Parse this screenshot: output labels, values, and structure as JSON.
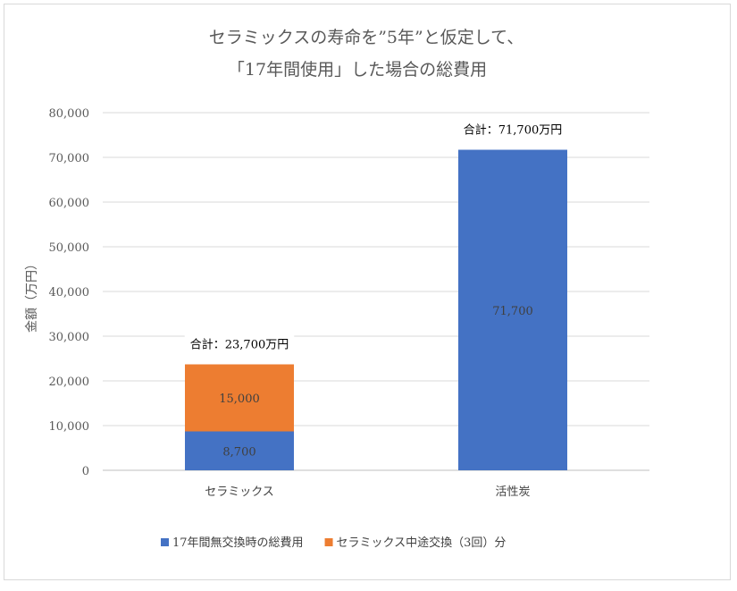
{
  "chart_data": {
    "type": "bar",
    "stacked": true,
    "title_lines": [
      "セラミックスの寿命を”5年”と仮定して、",
      "「17年間使用」した場合の総費用"
    ],
    "xlabel": "",
    "ylabel": "金額（万円）",
    "ylim": [
      0,
      80000
    ],
    "yticks": [
      0,
      10000,
      20000,
      30000,
      40000,
      50000,
      60000,
      70000,
      80000
    ],
    "ytick_labels": [
      "0",
      "10,000",
      "20,000",
      "30,000",
      "40,000",
      "50,000",
      "60,000",
      "70,000",
      "80,000"
    ],
    "grid": true,
    "legend_position": "bottom",
    "categories": [
      "セラミックス",
      "活性炭"
    ],
    "series": [
      {
        "name": "17年間無交換時の総費用",
        "values": [
          8700,
          71700
        ],
        "labels": [
          "8,700",
          "71,700"
        ],
        "color": "#4472c4"
      },
      {
        "name": "セラミックス中途交換（3回）分",
        "values": [
          15000,
          0
        ],
        "labels": [
          "15,000",
          ""
        ],
        "color": "#ed7d31"
      }
    ],
    "totals": [
      "合計：23,700万円",
      "合計：71,700万円"
    ]
  }
}
